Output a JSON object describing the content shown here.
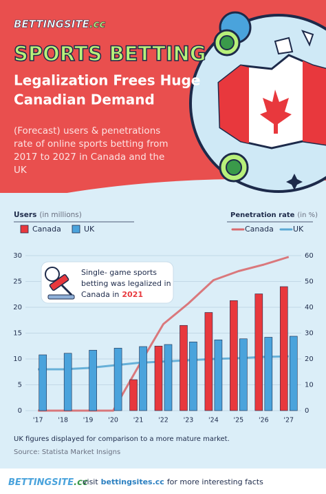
{
  "header": {
    "logo": "BETTINGSITE",
    "logo_suffix": ".cc",
    "title": "SPORTS BETTING",
    "subtitle": [
      "Legalization Frees Huge",
      "Canadian Demand"
    ],
    "description": [
      "(Forecast) users & penetrations",
      "rate of online sports betting from",
      "2017 to 2027 in Canada and the",
      "UK"
    ]
  },
  "chart_data": {
    "type": "bar",
    "y_label": "Users",
    "y_unit": "(in millions)",
    "y2_label": "Penetration rate",
    "y2_unit": "(in %)",
    "categories": [
      "'17",
      "'18",
      "'19",
      "'20",
      "'21",
      "'22",
      "'23",
      "'24",
      "'25",
      "'26",
      "'27"
    ],
    "series": [
      {
        "name": "Canada",
        "type": "bar",
        "color": "#e8383d",
        "values": [
          null,
          null,
          null,
          null,
          6,
          12.5,
          16.5,
          19,
          21.3,
          22.6,
          24
        ]
      },
      {
        "name": "UK",
        "type": "bar",
        "color": "#4aa3dc",
        "values": [
          10.8,
          11.1,
          11.7,
          12.1,
          12.4,
          12.8,
          13.3,
          13.7,
          13.9,
          14.2,
          14.4
        ]
      },
      {
        "name": "Canada",
        "type": "line",
        "axis": "y2",
        "color": "#d96a6e",
        "values": [
          0,
          0,
          0,
          0,
          17,
          33.5,
          41.5,
          50.5,
          54,
          56.5,
          59.5
        ]
      },
      {
        "name": "UK",
        "type": "line",
        "axis": "y2",
        "color": "#5aa8d4",
        "values": [
          16,
          16,
          16.5,
          17.5,
          18.5,
          19,
          19.5,
          20,
          20.3,
          20.8,
          21
        ]
      }
    ],
    "ylim": [
      0,
      30
    ],
    "yticks": [
      0,
      5,
      10,
      15,
      20,
      25,
      30
    ],
    "y2lim": [
      0,
      60
    ],
    "y2ticks": [
      0,
      10,
      20,
      30,
      40,
      50,
      60
    ],
    "grid": true,
    "annotation": {
      "lines": [
        "Single- game sports",
        "betting was legalized in",
        "Canada in"
      ],
      "highlight": "2021"
    },
    "notes": [
      "UK figures displayed for comparison to a more mature market.",
      "Source: Statista Market Insigns"
    ]
  },
  "footer": {
    "logo": "BETTINGSITE",
    "logo_suffix": ".cc",
    "text_before": "visit",
    "link": "bettingsites.cc",
    "text_after": "for more interesting facts"
  }
}
